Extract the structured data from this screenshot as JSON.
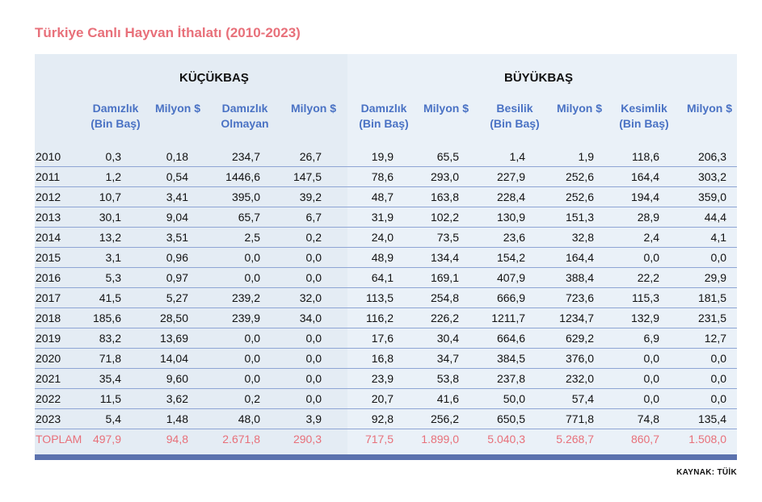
{
  "title": "Türkiye Canlı Hayvan İthalatı (2010-2023)",
  "groups": {
    "small": "KÜÇÜKBAŞ",
    "large": "BÜYÜKBAŞ"
  },
  "columns": [
    "Damızlık\n(Bin Baş)",
    "Milyon $",
    "Damızlık\nOlmayan",
    "Milyon $",
    "Damızlık\n(Bin Baş)",
    "Milyon $",
    "Besilik\n(Bin Baş)",
    "Milyon $",
    "Kesimlik\n(Bin Baş)",
    "Milyon $"
  ],
  "rows": [
    [
      "2010",
      "0,3",
      "0,18",
      "234,7",
      "26,7",
      "19,9",
      "65,5",
      "1,4",
      "1,9",
      "118,6",
      "206,3"
    ],
    [
      "2011",
      "1,2",
      "0,54",
      "1446,6",
      "147,5",
      "78,6",
      "293,0",
      "227,9",
      "252,6",
      "164,4",
      "303,2"
    ],
    [
      "2012",
      "10,7",
      "3,41",
      "395,0",
      "39,2",
      "48,7",
      "163,8",
      "228,4",
      "252,6",
      "194,4",
      "359,0"
    ],
    [
      "2013",
      "30,1",
      "9,04",
      "65,7",
      "6,7",
      "31,9",
      "102,2",
      "130,9",
      "151,3",
      "28,9",
      "44,4"
    ],
    [
      "2014",
      "13,2",
      "3,51",
      "2,5",
      "0,2",
      "24,0",
      "73,5",
      "23,6",
      "32,8",
      "2,4",
      "4,1"
    ],
    [
      "2015",
      "3,1",
      "0,96",
      "0,0",
      "0,0",
      "48,9",
      "134,4",
      "154,2",
      "164,4",
      "0,0",
      "0,0"
    ],
    [
      "2016",
      "5,3",
      "0,97",
      "0,0",
      "0,0",
      "64,1",
      "169,1",
      "407,9",
      "388,4",
      "22,2",
      "29,9"
    ],
    [
      "2017",
      "41,5",
      "5,27",
      "239,2",
      "32,0",
      "113,5",
      "254,8",
      "666,9",
      "723,6",
      "115,3",
      "181,5"
    ],
    [
      "2018",
      "185,6",
      "28,50",
      "239,9",
      "34,0",
      "116,2",
      "226,2",
      "1211,7",
      "1234,7",
      "132,9",
      "231,5"
    ],
    [
      "2019",
      "83,2",
      "13,69",
      "0,0",
      "0,0",
      "17,6",
      "30,4",
      "664,6",
      "629,2",
      "6,9",
      "12,7"
    ],
    [
      "2020",
      "71,8",
      "14,04",
      "0,0",
      "0,0",
      "16,8",
      "34,7",
      "384,5",
      "376,0",
      "0,0",
      "0,0"
    ],
    [
      "2021",
      "35,4",
      "9,60",
      "0,0",
      "0,0",
      "23,9",
      "53,8",
      "237,8",
      "232,0",
      "0,0",
      "0,0"
    ],
    [
      "2022",
      "11,5",
      "3,62",
      "0,2",
      "0,0",
      "20,7",
      "41,6",
      "50,0",
      "57,4",
      "0,0",
      "0,0"
    ],
    [
      "2023",
      "5,4",
      "1,48",
      "48,0",
      "3,9",
      "92,8",
      "256,2",
      "650,5",
      "771,8",
      "74,8",
      "135,4"
    ]
  ],
  "total": [
    "TOPLAM",
    "497,9",
    "94,8",
    "2.671,8",
    "290,3",
    "717,5",
    "1.899,0",
    "5.040,3",
    "5.268,7",
    "860,7",
    "1.508,0"
  ],
  "source": "KAYNAK: TÜİK",
  "colors": {
    "title": "#e8707a",
    "header": "#4a72c4",
    "rule": "#8ea5d4",
    "bar": "#5b72ae"
  }
}
